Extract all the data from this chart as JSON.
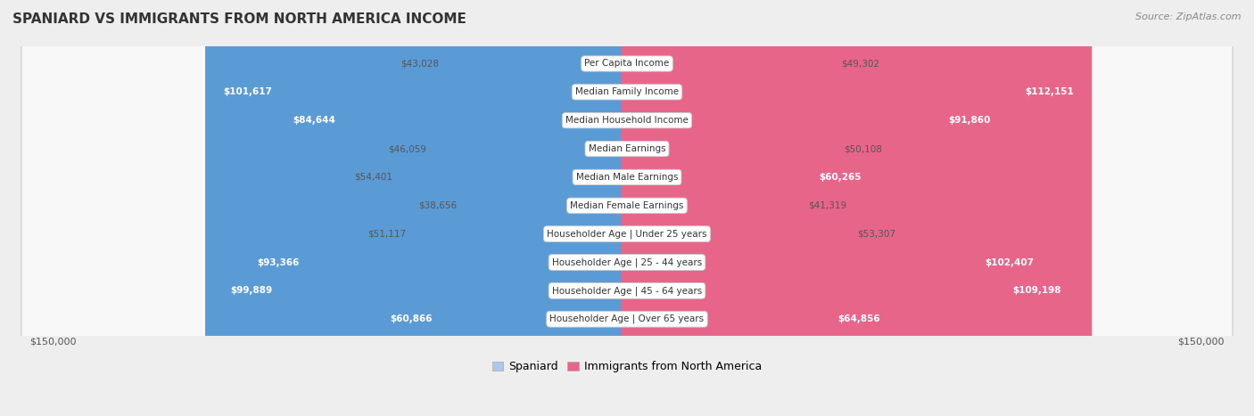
{
  "title": "SPANIARD VS IMMIGRANTS FROM NORTH AMERICA INCOME",
  "source": "Source: ZipAtlas.com",
  "categories": [
    "Per Capita Income",
    "Median Family Income",
    "Median Household Income",
    "Median Earnings",
    "Median Male Earnings",
    "Median Female Earnings",
    "Householder Age | Under 25 years",
    "Householder Age | 25 - 44 years",
    "Householder Age | 45 - 64 years",
    "Householder Age | Over 65 years"
  ],
  "spaniard_values": [
    43028,
    101617,
    84644,
    46059,
    54401,
    38656,
    51117,
    93366,
    99889,
    60866
  ],
  "immigrant_values": [
    49302,
    112151,
    91860,
    50108,
    60265,
    41319,
    53307,
    102407,
    109198,
    64856
  ],
  "spaniard_labels": [
    "$43,028",
    "$101,617",
    "$84,644",
    "$46,059",
    "$54,401",
    "$38,656",
    "$51,117",
    "$93,366",
    "$99,889",
    "$60,866"
  ],
  "immigrant_labels": [
    "$49,302",
    "$112,151",
    "$91,860",
    "$50,108",
    "$60,265",
    "$41,319",
    "$53,307",
    "$102,407",
    "$109,198",
    "$64,856"
  ],
  "spaniard_color_light": "#adc8e8",
  "spaniard_color_dark": "#5b9bd5",
  "immigrant_color_light": "#f8b8cd",
  "immigrant_color_dark": "#e8658a",
  "inside_label_threshold": 55000,
  "max_value": 150000,
  "background_color": "#eeeeee",
  "row_bg_color": "#f8f8f8",
  "row_border_color": "#d8d8d8",
  "outside_label_color": "#555555",
  "inside_label_color": "#ffffff",
  "legend_spaniard": "Spaniard",
  "legend_immigrant": "Immigrants from North America",
  "title_color": "#333333",
  "title_fontsize": 11,
  "source_color": "#888888",
  "source_fontsize": 8,
  "label_fontsize": 7.5,
  "cat_fontsize": 7.5
}
